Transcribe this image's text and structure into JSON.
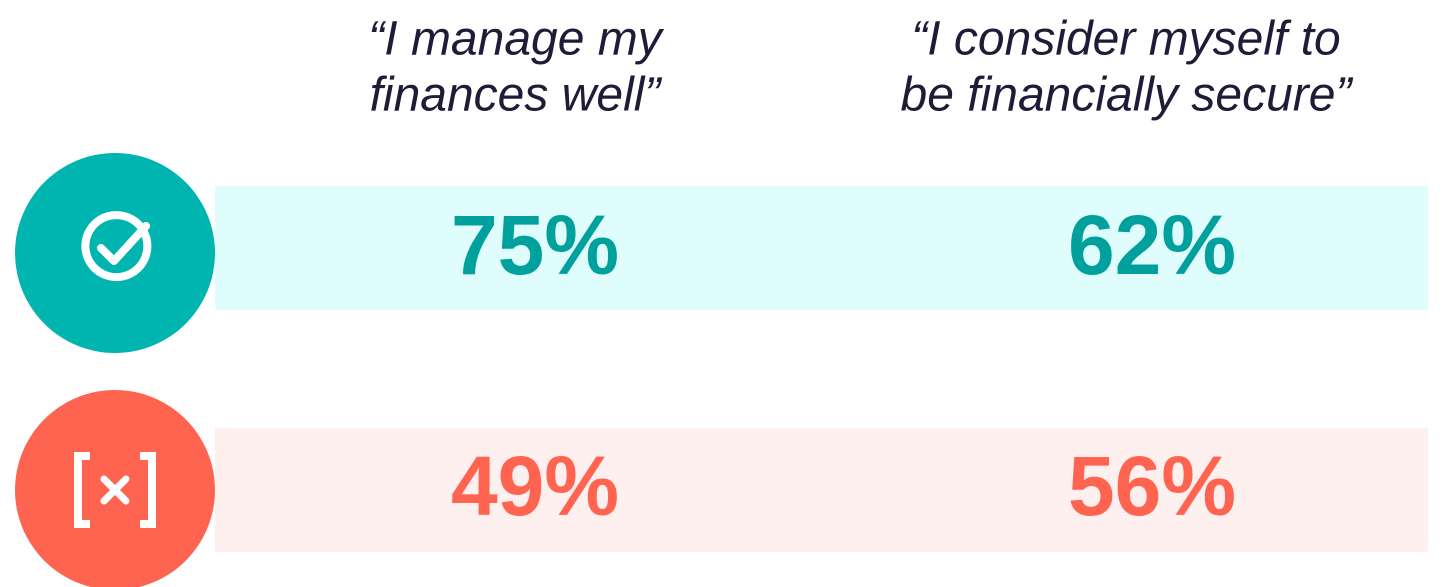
{
  "columns": [
    {
      "lines": [
        "“I manage my",
        "finances well”"
      ]
    },
    {
      "lines": [
        "“I consider myself to",
        "be financially secure”"
      ]
    }
  ],
  "rows": [
    {
      "values": [
        "75%",
        "62%"
      ]
    },
    {
      "values": [
        "49%",
        "56%"
      ]
    }
  ]
}
